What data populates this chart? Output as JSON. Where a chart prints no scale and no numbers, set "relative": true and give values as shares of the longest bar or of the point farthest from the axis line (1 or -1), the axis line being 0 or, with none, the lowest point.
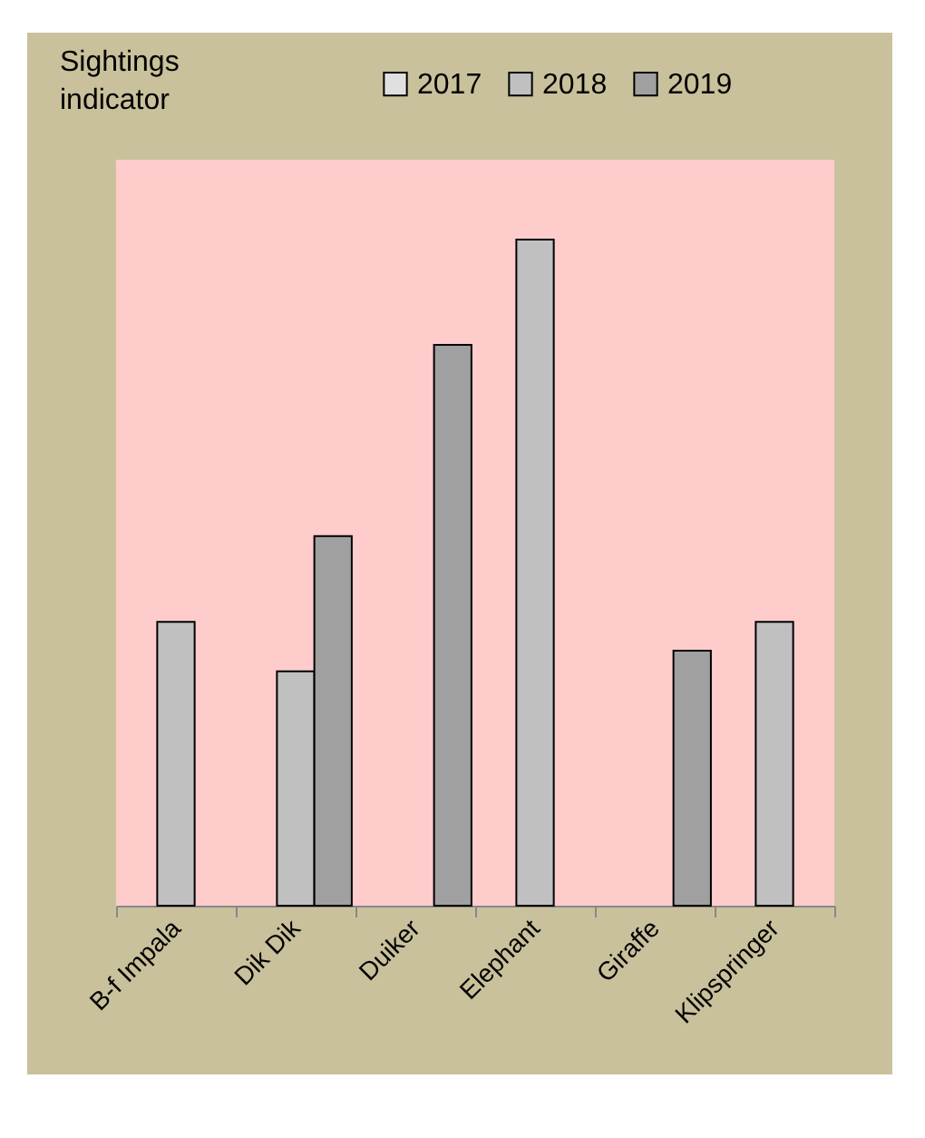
{
  "chart_data": {
    "type": "bar",
    "relative": true,
    "annotations": [
      "Sightings indicator"
    ],
    "legend": "top right",
    "grid": false,
    "categories": [
      "B-f Impala",
      "Dik Dik",
      "Duiker",
      "Elephant",
      "Giraffe",
      "Klipspringer"
    ],
    "series": [
      {
        "name": "2017",
        "color": "#e0e0e0",
        "values": [
          null,
          null,
          null,
          null,
          null,
          null
        ]
      },
      {
        "name": "2018",
        "color": "#c0c0c0",
        "values": [
          0.426,
          0.352,
          null,
          1,
          null,
          0.426
        ]
      },
      {
        "name": "2019",
        "color": "#a0a0a0",
        "values": [
          null,
          0.555,
          0.842,
          null,
          0.383,
          null
        ]
      }
    ]
  }
}
